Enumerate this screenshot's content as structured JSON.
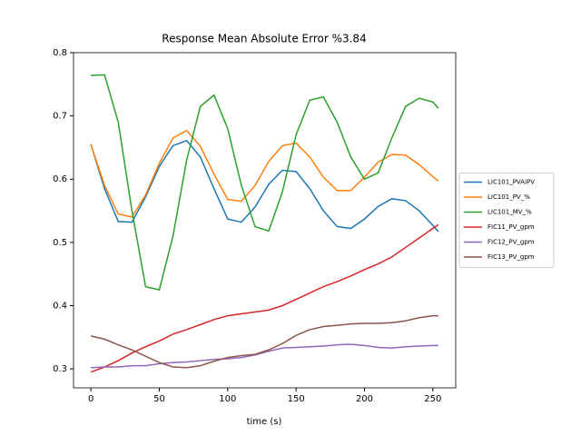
{
  "chart_data": {
    "type": "line",
    "title": "Response Mean Absolute Error %3.84",
    "x_label": "time (s)",
    "x": [
      0,
      10,
      20,
      30,
      40,
      50,
      60,
      70,
      80,
      90,
      100,
      110,
      120,
      130,
      140,
      150,
      160,
      170,
      180,
      190,
      200,
      210,
      220,
      230,
      240,
      250,
      254
    ],
    "series": [
      {
        "name": "LIC101_PVAiPV",
        "color": "#1f77b4",
        "values": [
          0.655,
          0.585,
          0.533,
          0.532,
          0.572,
          0.62,
          0.653,
          0.661,
          0.635,
          0.585,
          0.537,
          0.532,
          0.556,
          0.592,
          0.614,
          0.612,
          0.585,
          0.55,
          0.525,
          0.522,
          0.537,
          0.557,
          0.569,
          0.566,
          0.55,
          0.527,
          0.517
        ]
      },
      {
        "name": "LIC101_PV_%",
        "color": "#ff7f0e",
        "values": [
          0.655,
          0.59,
          0.545,
          0.54,
          0.575,
          0.625,
          0.665,
          0.677,
          0.652,
          0.608,
          0.568,
          0.565,
          0.59,
          0.628,
          0.653,
          0.657,
          0.635,
          0.603,
          0.582,
          0.582,
          0.603,
          0.627,
          0.639,
          0.638,
          0.623,
          0.604,
          0.597
        ]
      },
      {
        "name": "LIC101_MV_%",
        "color": "#2ca02c",
        "values": [
          0.764,
          0.765,
          0.69,
          0.55,
          0.43,
          0.425,
          0.51,
          0.63,
          0.715,
          0.733,
          0.68,
          0.59,
          0.525,
          0.518,
          0.58,
          0.67,
          0.725,
          0.73,
          0.69,
          0.635,
          0.6,
          0.61,
          0.665,
          0.715,
          0.728,
          0.722,
          0.712
        ]
      },
      {
        "name": "FIC11_PV_gpm",
        "color": "#d62728",
        "values": [
          0.295,
          0.303,
          0.313,
          0.325,
          0.335,
          0.344,
          0.355,
          0.362,
          0.37,
          0.378,
          0.384,
          0.387,
          0.39,
          0.393,
          0.4,
          0.41,
          0.42,
          0.43,
          0.438,
          0.447,
          0.457,
          0.466,
          0.477,
          0.492,
          0.507,
          0.522,
          0.528
        ]
      },
      {
        "name": "FIC12_PV_gpm",
        "color": "#9467bd",
        "values": [
          0.302,
          0.303,
          0.303,
          0.305,
          0.305,
          0.308,
          0.31,
          0.311,
          0.313,
          0.315,
          0.316,
          0.318,
          0.322,
          0.328,
          0.333,
          0.334,
          0.335,
          0.336,
          0.338,
          0.339,
          0.337,
          0.334,
          0.333,
          0.335,
          0.336,
          0.337,
          0.337
        ]
      },
      {
        "name": "FIC13_PV_gpm",
        "color": "#8c564b",
        "values": [
          0.352,
          0.347,
          0.338,
          0.33,
          0.32,
          0.31,
          0.303,
          0.302,
          0.305,
          0.312,
          0.318,
          0.321,
          0.323,
          0.33,
          0.34,
          0.353,
          0.362,
          0.367,
          0.369,
          0.371,
          0.372,
          0.372,
          0.373,
          0.376,
          0.381,
          0.384,
          0.384
        ]
      }
    ],
    "xlim": [
      -12.7,
      266.7
    ],
    "xticks": [
      0,
      50,
      100,
      150,
      200,
      250
    ],
    "ylim": [
      0.27,
      0.8
    ],
    "yticks": [
      0.3,
      0.4,
      0.5,
      0.6,
      0.7,
      0.8
    ],
    "legend": "right",
    "grid": false
  }
}
